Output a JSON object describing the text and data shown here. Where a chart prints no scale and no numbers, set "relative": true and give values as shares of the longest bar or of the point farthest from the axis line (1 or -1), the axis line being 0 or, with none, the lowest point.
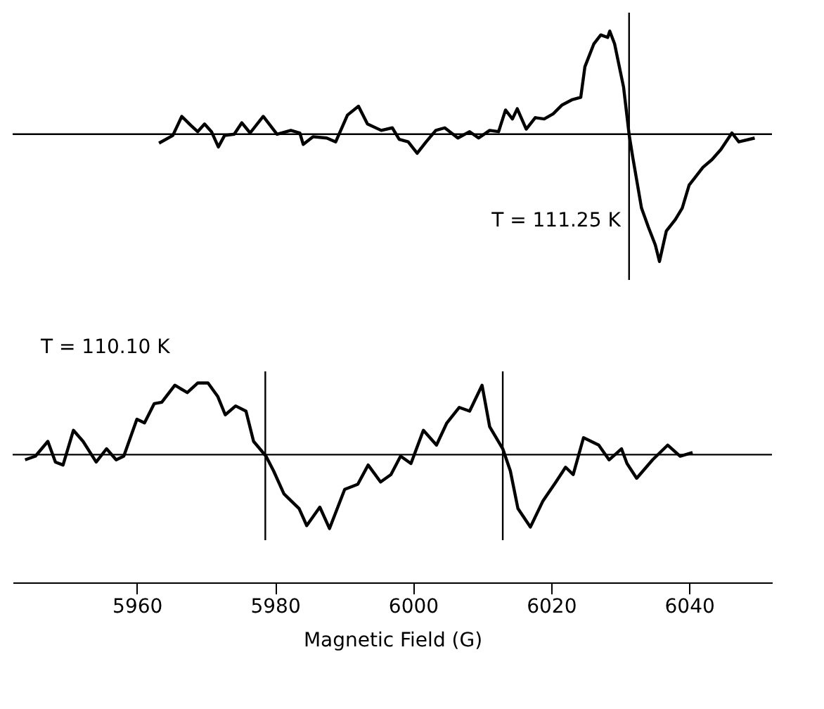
{
  "chart_data": [
    {
      "type": "line",
      "relative": true,
      "tick_labels": false,
      "xlim": [
        5942,
        6052
      ],
      "annotations": [
        "T = 111.25 K"
      ],
      "ref_lines": [
        {
          "axis": "y",
          "value": 0
        },
        {
          "axis": "x",
          "value": 6031.3
        }
      ],
      "series": [
        {
          "color": "#000000",
          "x": [
            5963.2,
            5965.2,
            5966.5,
            5967.8,
            5968.8,
            5969.8,
            5970.8,
            5971.8,
            5972.7,
            5974.1,
            5975.2,
            5976.4,
            5978.3,
            5980.3,
            5982.3,
            5983.6,
            5984.1,
            5985.5,
            5987.5,
            5988.8,
            5990.5,
            5992.1,
            5993.4,
            5995.4,
            5997.0,
            5998.0,
            5999.3,
            6000.6,
            6001.9,
            6003.3,
            6004.6,
            6006.5,
            6008.2,
            6009.5,
            6011.1,
            6012.4,
            6013.4,
            6014.4,
            6015.1,
            6016.4,
            6017.7,
            6019.0,
            6020.3,
            6021.6,
            6023.0,
            6024.3,
            6024.9,
            6026.2,
            6027.2,
            6028.2,
            6028.5,
            6029.2,
            6030.5,
            6031.3,
            6031.8,
            6033.1,
            6034.1,
            6035.1,
            6035.7,
            6036.7,
            6038.0,
            6039.0,
            6040.0,
            6042.0,
            6043.3,
            6044.6,
            6046.2,
            6047.2,
            6049.5
          ],
          "values": [
            -0.07,
            -0.01,
            0.14,
            0.07,
            0.02,
            0.08,
            0.02,
            -0.1,
            -0.01,
            0.0,
            0.09,
            0.01,
            0.14,
            0.0,
            0.03,
            0.01,
            -0.08,
            -0.02,
            -0.03,
            -0.06,
            0.15,
            0.22,
            0.08,
            0.03,
            0.05,
            -0.04,
            -0.06,
            -0.15,
            -0.06,
            0.03,
            0.05,
            -0.03,
            0.02,
            -0.03,
            0.03,
            0.02,
            0.19,
            0.12,
            0.2,
            0.04,
            0.13,
            0.12,
            0.16,
            0.23,
            0.27,
            0.29,
            0.53,
            0.71,
            0.78,
            0.76,
            0.81,
            0.71,
            0.37,
            0.0,
            -0.17,
            -0.58,
            -0.73,
            -0.87,
            -1,
            -0.76,
            -0.67,
            -0.58,
            -0.4,
            -0.26,
            -0.2,
            -0.12,
            0.01,
            -0.06,
            -0.03
          ]
        }
      ]
    },
    {
      "type": "line",
      "relative": true,
      "xlabel": "Magnetic Field (G)",
      "xlim": [
        5942,
        6052
      ],
      "xticks": [
        5960,
        5980,
        6000,
        6020,
        6040
      ],
      "annotations": [
        "T = 110.10 K"
      ],
      "ref_lines": [
        {
          "axis": "y",
          "value": 0
        },
        {
          "axis": "x",
          "value": 5978.6
        },
        {
          "axis": "x",
          "value": 6013.0
        }
      ],
      "series": [
        {
          "color": "#000000",
          "x": [
            5943.8,
            5945.3,
            5947.1,
            5948.2,
            5949.3,
            5950.8,
            5952.2,
            5954.1,
            5955.6,
            5957.0,
            5958.1,
            5960.0,
            5961.1,
            5962.5,
            5963.6,
            5965.5,
            5967.3,
            5968.8,
            5970.3,
            5971.7,
            5972.8,
            5974.3,
            5975.8,
            5976.9,
            5978.7,
            5979.8,
            5981.3,
            5983.5,
            5984.6,
            5986.5,
            5987.9,
            5990.1,
            5992.0,
            5993.5,
            5995.3,
            5996.8,
            5998.2,
            5999.7,
            6001.5,
            6003.4,
            6004.9,
            6006.7,
            6008.2,
            6010.0,
            6011.1,
            6013.0,
            6014.1,
            6015.2,
            6017.0,
            6018.8,
            6020.7,
            6022.1,
            6023.2,
            6024.7,
            6026.9,
            6028.4,
            6030.2,
            6031.0,
            6032.4,
            6034.7,
            6036.9,
            6038.7,
            6040.5
          ],
          "values": [
            -0.07,
            -0.02,
            0.18,
            -0.1,
            -0.14,
            0.33,
            0.18,
            -0.1,
            0.08,
            -0.07,
            -0.02,
            0.48,
            0.43,
            0.69,
            0.71,
            0.94,
            0.84,
            0.97,
            0.97,
            0.79,
            0.54,
            0.66,
            0.59,
            0.18,
            -0.02,
            -0.22,
            -0.53,
            -0.73,
            -0.96,
            -0.71,
            -1,
            -0.47,
            -0.4,
            -0.14,
            -0.37,
            -0.27,
            -0.02,
            -0.12,
            0.33,
            0.13,
            0.43,
            0.64,
            0.59,
            0.94,
            0.38,
            0.08,
            -0.22,
            -0.73,
            -0.98,
            -0.63,
            -0.37,
            -0.17,
            -0.27,
            0.23,
            0.13,
            -0.07,
            0.08,
            -0.12,
            -0.32,
            -0.07,
            0.13,
            -0.02,
            0.03
          ]
        }
      ]
    }
  ]
}
